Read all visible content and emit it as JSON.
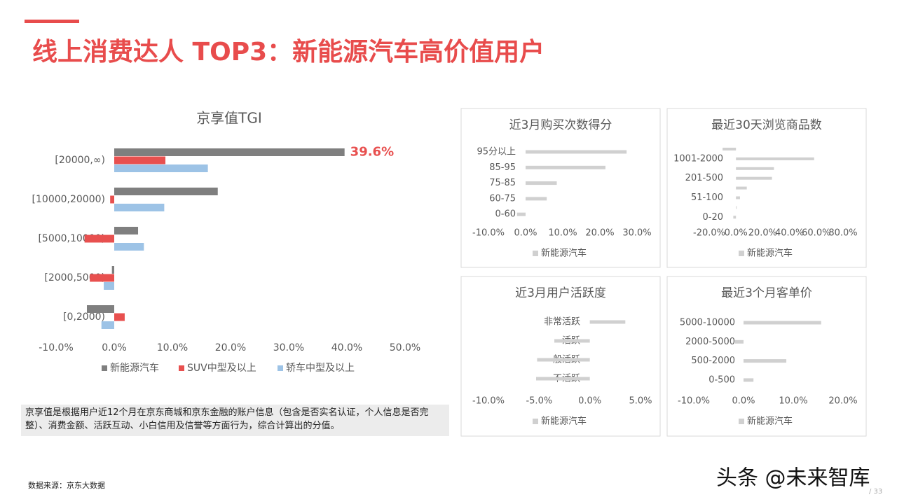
{
  "title": "线上消费达人 TOP3：新能源汽车高价值用户",
  "note": "京享值是根据用户近12个月在京东商城和京东金融的账户信息（包含是否实名认证，个人信息是否完整）、消费金额、活跃互动、小白信用及信誉等方面行为，综合计算出的分值。",
  "source": "数据来源：京东大数据",
  "watermark": "头条 @未来智库",
  "page": "/ 33",
  "chart_data": [
    {
      "type": "hbar",
      "title": "京享值TGI",
      "categories": [
        "[20000,∞)",
        "[10000,20000)",
        "[5000,10000)",
        "[2000,5000)",
        "[0,2000)"
      ],
      "series": [
        {
          "name": "新能源汽车",
          "color": "#7f7f7f",
          "values": [
            39.6,
            17.8,
            4.1,
            -0.4,
            -4.7
          ],
          "value_labels": [
            "39.6%",
            null,
            null,
            null,
            null
          ]
        },
        {
          "name": "SUV中型及以上",
          "color": "#e8504f",
          "values": [
            8.8,
            -0.7,
            -5.1,
            -4.2,
            1.8
          ]
        },
        {
          "name": "轿车中型及以上",
          "color": "#9dc3e6",
          "values": [
            16.1,
            8.6,
            5.1,
            -1.8,
            -2.2
          ]
        }
      ],
      "xlim": [
        -10,
        50
      ],
      "xticks": [
        {
          "value": -10,
          "label": "-10.0%"
        },
        {
          "value": 0,
          "label": "0.0%"
        },
        {
          "value": 10,
          "label": "10.0%"
        },
        {
          "value": 20,
          "label": "20.0%"
        },
        {
          "value": 30,
          "label": "30.0%"
        },
        {
          "value": 40,
          "label": "40.0%"
        },
        {
          "value": 50,
          "label": "50.0%"
        }
      ]
    },
    {
      "type": "hbar",
      "title": "近3月购买次数得分",
      "categories": [
        "95分以上",
        "85-95",
        "75-85",
        "60-75",
        "0-60"
      ],
      "series": [
        {
          "name": "新能源汽车",
          "color": "#d0d0d0",
          "values": [
            27.2,
            21.5,
            8.4,
            5.7,
            -2.3
          ]
        }
      ],
      "xlim": [
        -10,
        30
      ],
      "xticks": [
        {
          "value": -10,
          "label": "-10.0%"
        },
        {
          "value": 0,
          "label": "0.0%"
        },
        {
          "value": 10,
          "label": "10.0%"
        },
        {
          "value": 20,
          "label": "20.0%"
        },
        {
          "value": 30,
          "label": "30.0%"
        }
      ]
    },
    {
      "type": "hbar",
      "title": "最近30天浏览商品数",
      "categories": [
        null,
        "1001-2000",
        null,
        "201-500",
        null,
        "51-100",
        null,
        "0-20"
      ],
      "series": [
        {
          "name": "新能源汽车",
          "color": "#d0d0d0",
          "values": [
            -10,
            58.4,
            28.4,
            26.9,
            8.1,
            3,
            0.5,
            -2
          ]
        }
      ],
      "xlim": [
        -20,
        80
      ],
      "xticks": [
        {
          "value": -20,
          "label": "-20.0%"
        },
        {
          "value": 0,
          "label": "0.0%"
        },
        {
          "value": 20,
          "label": "20.0%"
        },
        {
          "value": 40,
          "label": "40.0%"
        },
        {
          "value": 60,
          "label": "60.0%"
        },
        {
          "value": 80,
          "label": "80.0%"
        }
      ]
    },
    {
      "type": "hbar",
      "title": "近3月用户活跃度",
      "categories": [
        "非常活跃",
        "活跃",
        "一般活跃",
        "不活跃"
      ],
      "series": [
        {
          "name": "新能源汽车",
          "color": "#d0d0d0",
          "values": [
            3.5,
            -3.5,
            -5.2,
            -5.3
          ]
        }
      ],
      "xlim": [
        -10,
        5
      ],
      "xticks": [
        {
          "value": -10,
          "label": "-10.0%"
        },
        {
          "value": -5,
          "label": "-5.0%"
        },
        {
          "value": 0,
          "label": "0.0%"
        },
        {
          "value": 5,
          "label": "5.0%"
        }
      ]
    },
    {
      "type": "hbar",
      "title": "最近3个月客单价",
      "categories": [
        "5000-10000",
        "2000-5000",
        "500-2000",
        "0-500"
      ],
      "series": [
        {
          "name": "新能源汽车",
          "color": "#d0d0d0",
          "values": [
            15.6,
            -1.7,
            8.6,
            2
          ]
        }
      ],
      "xlim": [
        -10,
        20
      ],
      "xticks": [
        {
          "value": -10,
          "label": "-10.0%"
        },
        {
          "value": 0,
          "label": "0.0%"
        },
        {
          "value": 10,
          "label": "10.0%"
        },
        {
          "value": 20,
          "label": "20.0%"
        }
      ]
    }
  ]
}
